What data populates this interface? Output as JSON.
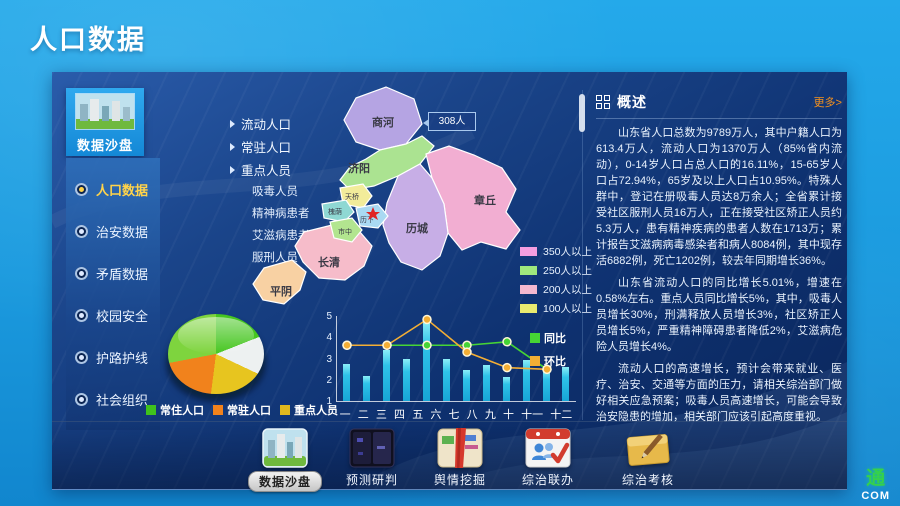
{
  "page_title": "人口数据",
  "sidebar": {
    "header_label": "数据沙盘",
    "items": [
      {
        "label": "人口数据",
        "active": true
      },
      {
        "label": "治安数据",
        "active": false
      },
      {
        "label": "矛盾数据",
        "active": false
      },
      {
        "label": "校园安全",
        "active": false
      },
      {
        "label": "护路护线",
        "active": false
      },
      {
        "label": "社会组织",
        "active": false
      }
    ]
  },
  "submenu": {
    "items": [
      {
        "label": "流动人口"
      },
      {
        "label": "常驻人口"
      },
      {
        "label": "重点人员"
      }
    ],
    "sub_items": [
      {
        "label": "吸毒人员"
      },
      {
        "label": "精神病患者"
      },
      {
        "label": "艾滋病患者"
      },
      {
        "label": "服刑人员"
      }
    ]
  },
  "map": {
    "tooltip": "308人",
    "districts": [
      {
        "name": "商河",
        "color": "#b5a4e3"
      },
      {
        "name": "济阳",
        "color": "#abe391"
      },
      {
        "name": "章丘",
        "color": "#f2aed2"
      },
      {
        "name": "历城",
        "color": "#c7aee6"
      },
      {
        "name": "长清",
        "color": "#f6bcca"
      },
      {
        "name": "平阴",
        "color": "#f8d1a3"
      },
      {
        "name": "天桥",
        "color": "#f2ec9a"
      },
      {
        "name": "槐荫",
        "color": "#8fd8d3"
      },
      {
        "name": "市中",
        "color": "#b2e58f"
      },
      {
        "name": "历下",
        "color": "#a9d9f2"
      }
    ],
    "legend": [
      {
        "label": "350人以上",
        "color": "#f49ee0"
      },
      {
        "label": "250人以上",
        "color": "#9fe87d"
      },
      {
        "label": "200人以上",
        "color": "#f4b8cf"
      },
      {
        "label": "100人以上",
        "color": "#e9ea6f"
      }
    ]
  },
  "overview": {
    "title": "概述",
    "more_label": "更多>",
    "paragraphs": [
      "山东省人口总数为9789万人，其中户籍人口为613.4万人，流动人口为1370万人（85%省内流动），0-14岁人口占总人口的16.11%，15-65岁人口占72.94%，65岁及以上人口占10.95%。特殊人群中，登记在册吸毒人员达8万余人；全省累计接受社区服刑人员16万人，正在接受社区矫正人员约5.3万人，患有精神疾病的患者人数在1713万；累计报告艾滋病病毒感染者和病人8084例，其中现存活6882例，死亡1202例，较去年同期增长36%。",
      "山东省流动人口的同比增长5.01%，增速在0.58%左右。重点人员同比增长5%，其中，吸毒人员增长30%，刑满释放人员增长3%，社区矫正人员增长5%，严重精神障碍患者降低2%，艾滋病危险人员增长4%。",
      "流动人口的高速增长，预计会带来就业、医疗、治安、交通等方面的压力，请相关综治部门做好相关应急预案；吸毒人员高速增长，可能会导致治安隐患的增加，相关部门应该引起高度重视。"
    ]
  },
  "chart_data": [
    {
      "type": "pie",
      "legend": [
        {
          "label": "常住人口",
          "color": "#3fc21c"
        },
        {
          "label": "常驻人口",
          "color": "#f1821c"
        },
        {
          "label": "重点人员",
          "color": "#e0b81e"
        }
      ],
      "slices": [
        {
          "value": 19,
          "color": "#46c620"
        },
        {
          "value": 13,
          "color": "#edf1f1"
        },
        {
          "value": 20,
          "color": "#e7c51f"
        },
        {
          "value": 20,
          "color": "#f1821c"
        },
        {
          "value": 28,
          "color": "#7ed43e"
        }
      ]
    },
    {
      "type": "bar+line",
      "categories": [
        "一",
        "二",
        "三",
        "四",
        "五",
        "六",
        "七",
        "八",
        "九",
        "十",
        "十一",
        "十二"
      ],
      "bar_values": [
        2.2,
        1.5,
        3.0,
        2.5,
        4.7,
        2.5,
        1.8,
        2.1,
        1.4,
        2.4,
        1.8,
        2.0
      ],
      "bar_color": "#2fc3e9",
      "line_series": [
        {
          "name": "同比",
          "color": "#46d435",
          "x_index": [
            0,
            2,
            4,
            6,
            8,
            10
          ],
          "values": [
            3.3,
            3.3,
            3.3,
            3.3,
            3.5,
            1.9
          ]
        },
        {
          "name": "环比",
          "color": "#f3ae35",
          "x_index": [
            0,
            2,
            4,
            6,
            8,
            10
          ],
          "values": [
            3.3,
            3.3,
            4.8,
            2.9,
            2.0,
            1.9
          ]
        }
      ],
      "ylim": [
        0,
        5
      ],
      "yticks": [
        5,
        4,
        3,
        2,
        1
      ],
      "legend_position": "right"
    }
  ],
  "toolbar": {
    "items": [
      {
        "label": "数据沙盘",
        "active": true
      },
      {
        "label": "预测研判",
        "active": false
      },
      {
        "label": "舆情挖掘",
        "active": false
      },
      {
        "label": "综治联办",
        "active": false
      },
      {
        "label": "综治考核",
        "active": false
      }
    ]
  },
  "watermark": {
    "char": "通",
    "text": "COM"
  }
}
